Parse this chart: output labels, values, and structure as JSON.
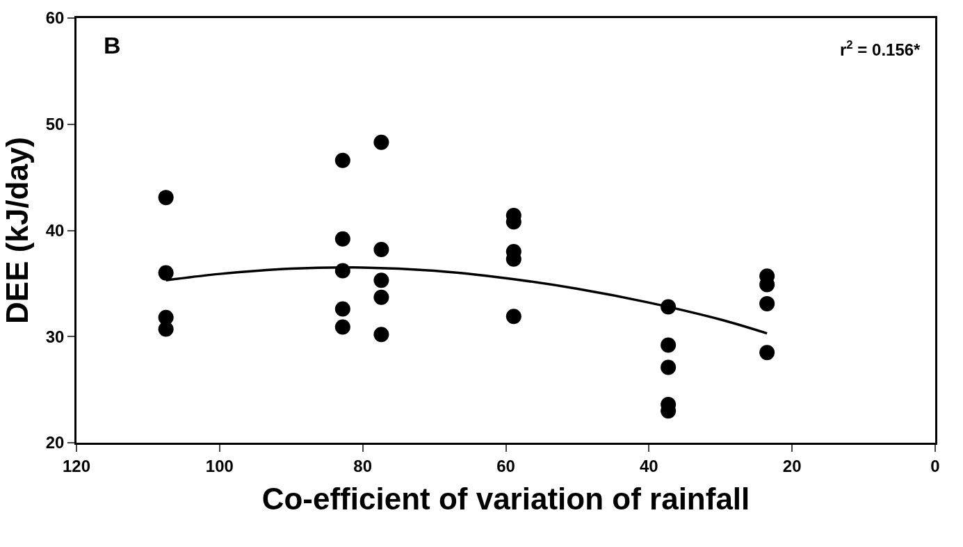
{
  "chart_data": {
    "type": "scatter",
    "xlabel": "Co-efficient of variation of rainfall",
    "ylabel": "DEE (kJ/day)",
    "annotations": [
      "B",
      "r$^{2}$ = 0.156*"
    ],
    "xlim": [
      120,
      0
    ],
    "xticks": [
      120,
      100,
      80,
      60,
      40,
      20,
      0
    ],
    "ylim": [
      20,
      60
    ],
    "yticks": [
      20,
      30,
      40,
      50,
      60
    ],
    "grid": false,
    "marker": "circle",
    "series": [
      {
        "color": "#000000",
        "x": [
          107.5,
          107.5,
          107.5,
          107.5,
          82.8,
          82.8,
          82.8,
          82.8,
          82.8,
          77.4,
          77.4,
          77.4,
          77.4,
          77.4,
          58.9,
          58.9,
          58.9,
          58.9,
          58.9,
          37.3,
          37.3,
          37.3,
          37.3,
          37.3,
          23.5,
          23.5,
          23.5,
          23.5
        ],
        "values": [
          43.1,
          36.0,
          31.8,
          30.7,
          46.6,
          39.2,
          36.2,
          32.6,
          30.9,
          48.3,
          38.2,
          35.3,
          33.7,
          30.2,
          41.4,
          40.8,
          38.0,
          37.3,
          31.9,
          32.8,
          29.2,
          27.1,
          23.6,
          23.0,
          35.7,
          34.9,
          33.1,
          28.5
        ]
      },
      {
        "type": "line",
        "color": "#000000",
        "marker": "none",
        "line_style": "solid",
        "x": [
          107.5,
          100,
          90,
          80,
          70,
          60,
          50,
          40,
          30,
          23.5
        ],
        "values": [
          35.3,
          35.9,
          36.4,
          36.5,
          36.2,
          35.5,
          34.5,
          33.2,
          31.6,
          30.3
        ]
      }
    ]
  }
}
